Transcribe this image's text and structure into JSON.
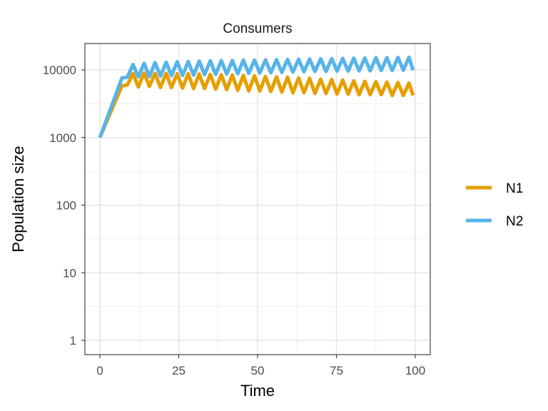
{
  "chart_data": {
    "type": "line",
    "title": "Consumers",
    "xlabel": "Time",
    "ylabel": "Population size",
    "y_scale": "log10",
    "xlim": [
      0,
      100
    ],
    "ylim": [
      1,
      25000
    ],
    "x_ticks": [
      0,
      25,
      50,
      75,
      100
    ],
    "x_tick_labels": [
      "0",
      "25",
      "50",
      "75",
      "100"
    ],
    "y_ticks": [
      1,
      10,
      100,
      1000,
      10000
    ],
    "y_tick_labels": [
      "1",
      "10",
      "100",
      "1000",
      "10000"
    ],
    "grid": true,
    "legend_position": "right",
    "series": [
      {
        "name": "N1",
        "color": "#E69F00",
        "x": [
          0,
          7,
          8.7,
          10.5,
          12.2,
          14,
          15.7,
          17.5,
          19.2,
          21,
          22.7,
          24.5,
          26.2,
          28,
          29.7,
          31.5,
          33.2,
          35,
          36.7,
          38.5,
          40.2,
          42,
          43.7,
          45.5,
          47.2,
          49,
          50.7,
          52.5,
          54.2,
          56,
          57.7,
          59.5,
          61.2,
          63,
          64.7,
          66.5,
          68.2,
          70,
          71.7,
          73.5,
          75.2,
          77,
          78.7,
          80.5,
          82.2,
          84,
          85.7,
          87.5,
          89.2,
          91,
          92.7,
          94.5,
          96.2,
          98,
          99.3
        ],
        "values": [
          1000,
          5800,
          6000,
          8800,
          5600,
          9000,
          5700,
          8900,
          5500,
          8900,
          5500,
          8800,
          5400,
          8800,
          5300,
          8700,
          5300,
          8600,
          5200,
          8500,
          5100,
          8400,
          5000,
          8300,
          4900,
          8200,
          4900,
          8000,
          4800,
          7900,
          4700,
          7800,
          4600,
          7600,
          4600,
          7500,
          4500,
          7300,
          4500,
          7200,
          4400,
          7100,
          4400,
          6900,
          4300,
          6800,
          4300,
          6700,
          4300,
          6600,
          4200,
          6500,
          4200,
          6400,
          4200
        ]
      },
      {
        "name": "N2",
        "color": "#56B4E9",
        "x": [
          0,
          7,
          8.7,
          10.5,
          12.2,
          14,
          15.7,
          17.5,
          19.2,
          21,
          22.7,
          24.5,
          26.2,
          28,
          29.7,
          31.5,
          33.2,
          35,
          36.7,
          38.5,
          40.2,
          42,
          43.7,
          45.5,
          47.2,
          49,
          50.7,
          52.5,
          54.2,
          56,
          57.7,
          59.5,
          61.2,
          63,
          64.7,
          66.5,
          68.2,
          70,
          71.7,
          73.5,
          75.2,
          77,
          78.7,
          80.5,
          82.2,
          84,
          85.7,
          87.5,
          89.2,
          91,
          92.7,
          94.5,
          96.2,
          98,
          99.3
        ],
        "values": [
          1000,
          7600,
          7800,
          12000,
          7900,
          12500,
          8000,
          12800,
          8100,
          13000,
          8200,
          13200,
          8300,
          13300,
          8400,
          13500,
          8500,
          13600,
          8600,
          13700,
          8700,
          13800,
          8800,
          13900,
          8900,
          14000,
          9000,
          14100,
          9100,
          14200,
          9200,
          14300,
          9300,
          14400,
          9400,
          14500,
          9500,
          14600,
          9500,
          14700,
          9600,
          14800,
          9600,
          14900,
          9700,
          15000,
          9700,
          15100,
          9800,
          15200,
          9800,
          15300,
          9900,
          15400,
          9900
        ]
      }
    ]
  }
}
